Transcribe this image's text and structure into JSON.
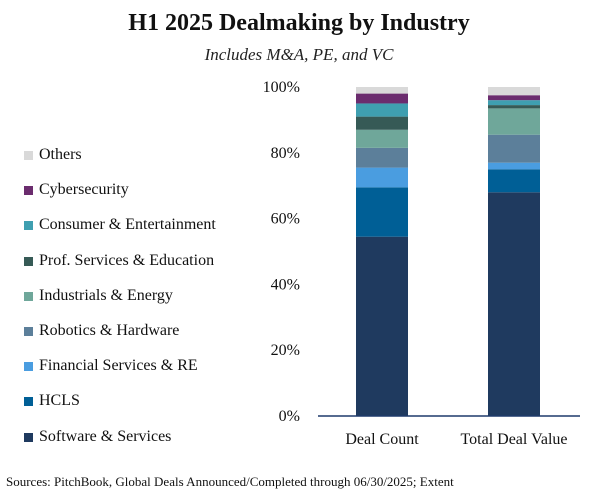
{
  "chart_data": {
    "type": "bar",
    "stacked": true,
    "title": "H1 2025 Dealmaking by Industry",
    "subtitle": "Includes M&A, PE, and VC",
    "source": "Sources: PitchBook, Global Deals Announced/Completed through 06/30/2025; Extent",
    "categories": [
      "Deal Count",
      "Total Deal Value"
    ],
    "y_ticks": [
      "0%",
      "20%",
      "40%",
      "60%",
      "80%",
      "100%"
    ],
    "ylim": [
      0,
      100
    ],
    "grid": false,
    "legend_position": "left",
    "series": [
      {
        "name": "Software & Services",
        "color": "#1f3a5f",
        "values": [
          54.5,
          68
        ]
      },
      {
        "name": "HCLS",
        "color": "#005f96",
        "values": [
          15,
          7
        ]
      },
      {
        "name": "Financial Services & RE",
        "color": "#4a9de0",
        "values": [
          6,
          2
        ]
      },
      {
        "name": "Robotics & Hardware",
        "color": "#5c7f9a",
        "values": [
          6,
          8.5
        ]
      },
      {
        "name": "Industrials & Energy",
        "color": "#6fa79a",
        "values": [
          5.5,
          8
        ]
      },
      {
        "name": "Prof. Services & Education",
        "color": "#365a56",
        "values": [
          4,
          1
        ]
      },
      {
        "name": "Consumer & Entertainment",
        "color": "#3f9fb0",
        "values": [
          4,
          1.5
        ]
      },
      {
        "name": "Cybersecurity",
        "color": "#6b2c6e",
        "values": [
          3,
          1.5
        ]
      },
      {
        "name": "Others",
        "color": "#d9d9d9",
        "values": [
          2,
          2.5
        ]
      }
    ]
  }
}
